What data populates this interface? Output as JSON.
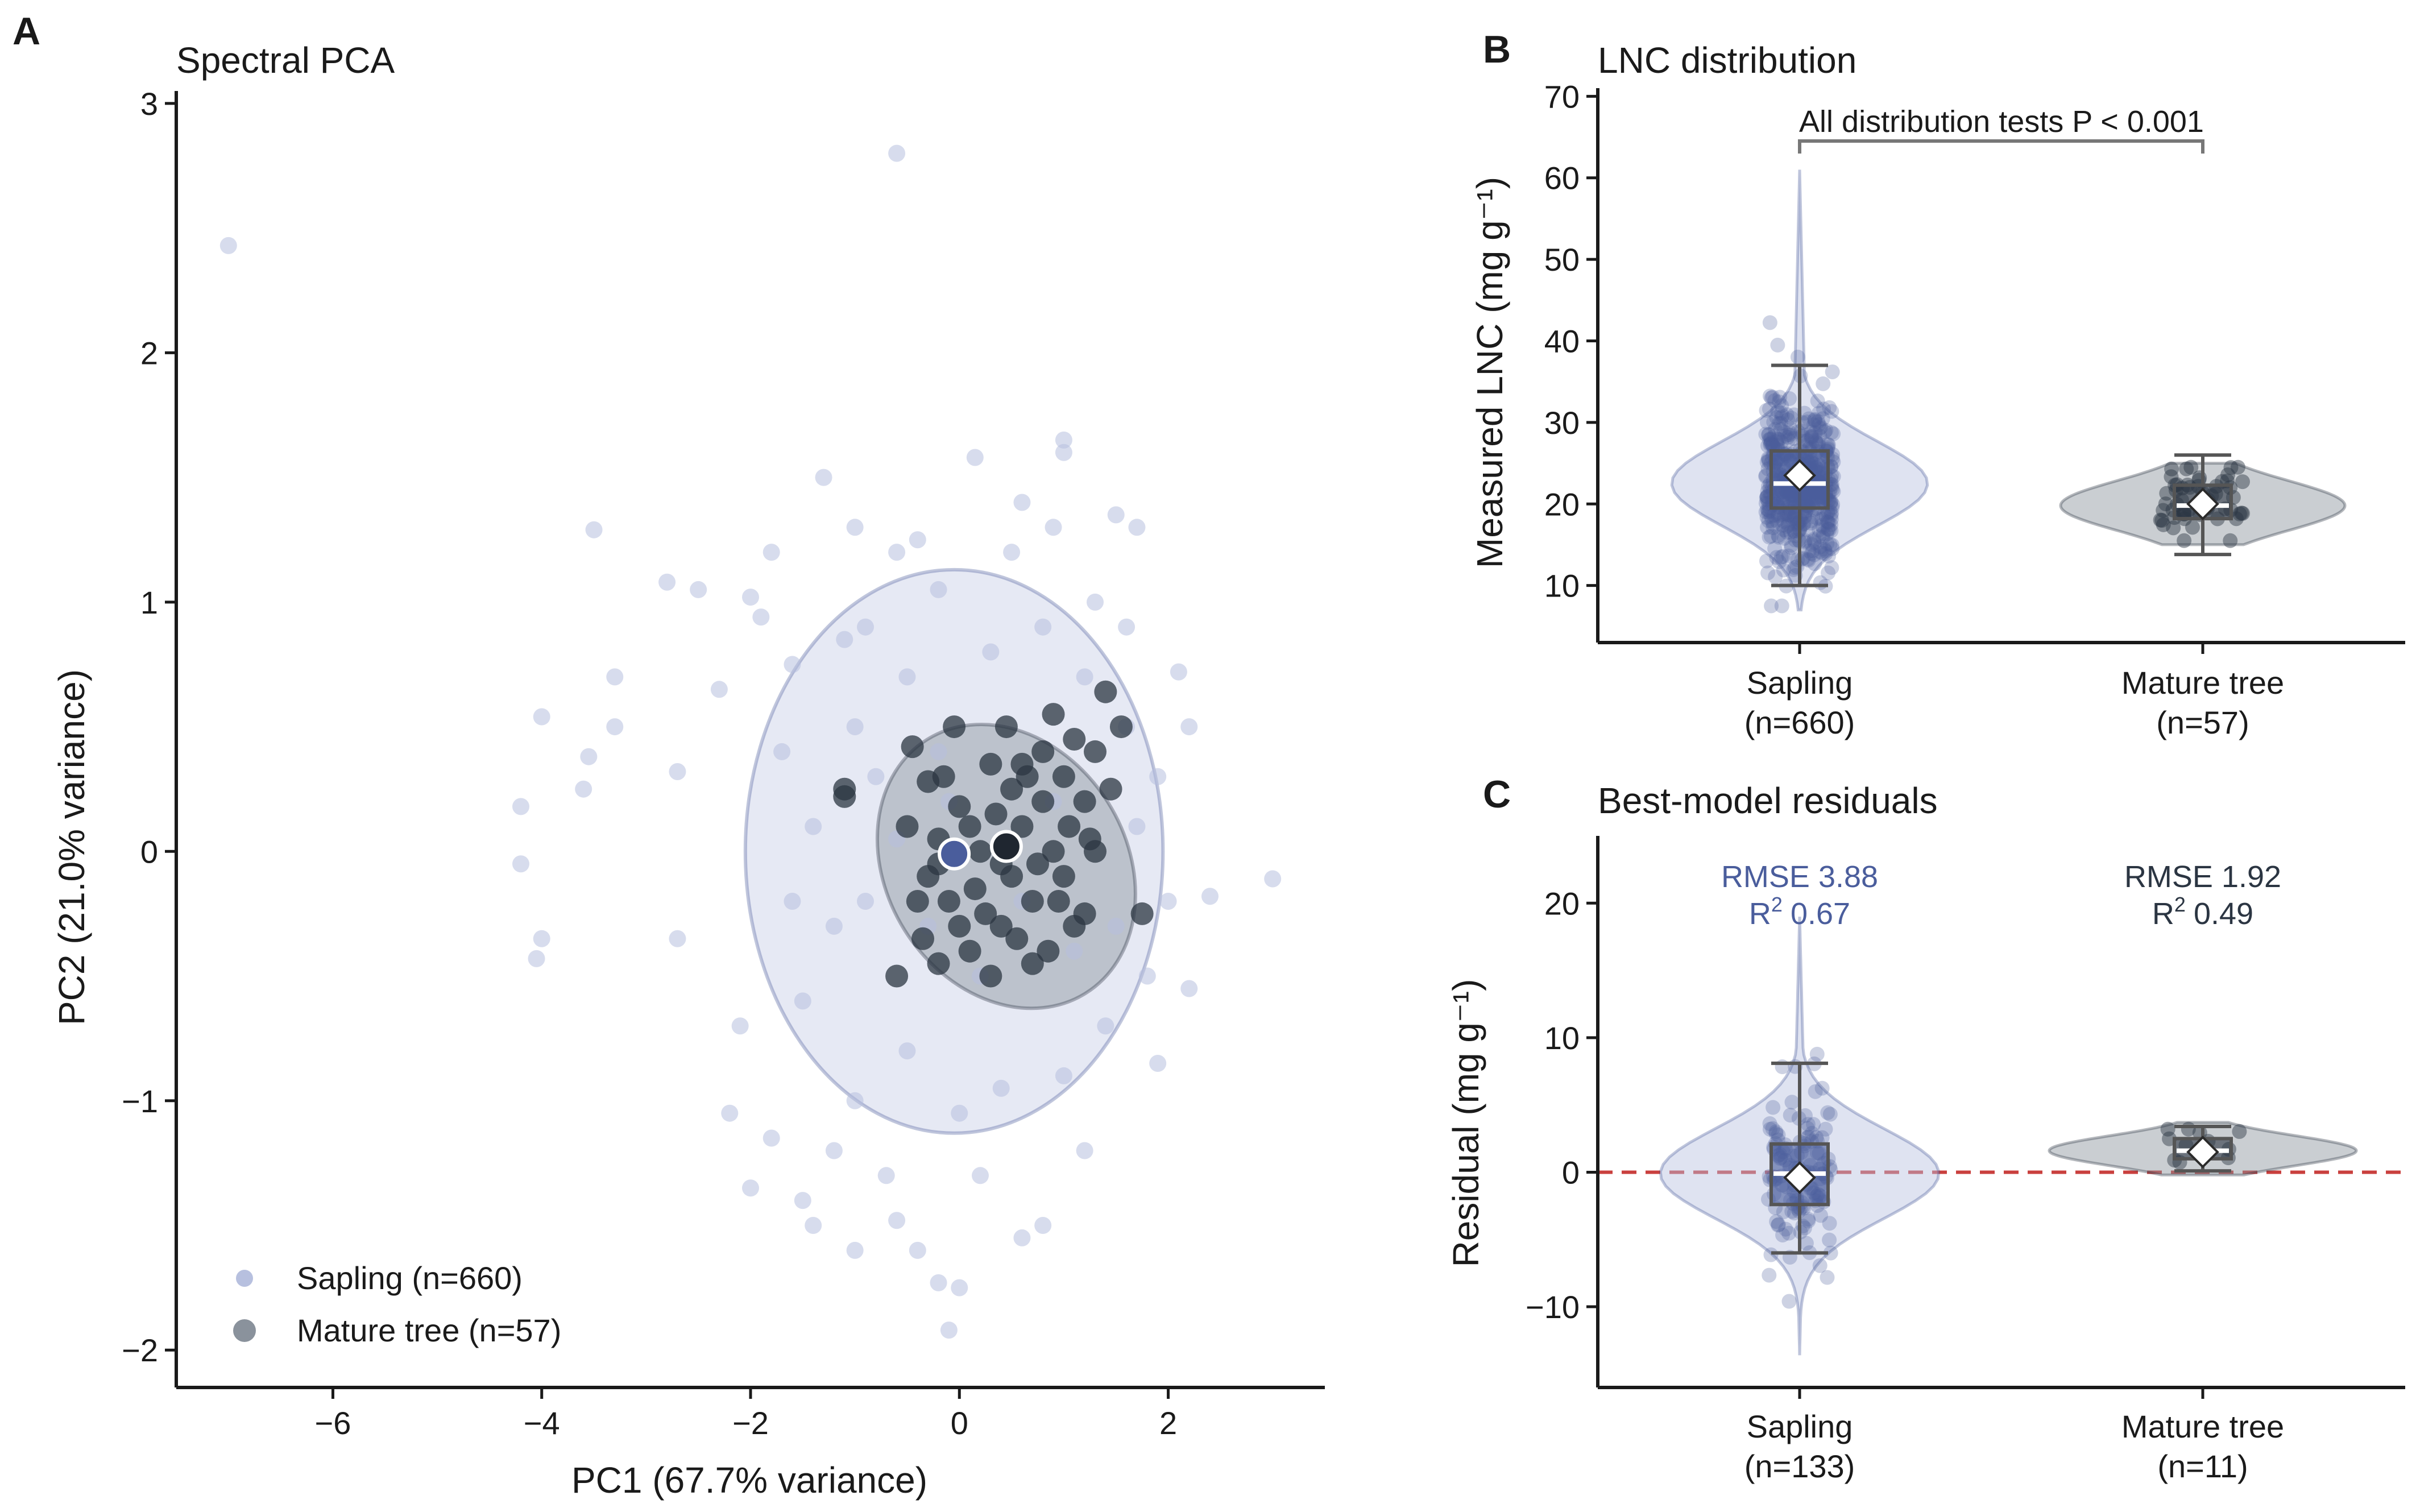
{
  "colors": {
    "sapling": "#4a5d9c",
    "sapling_light": "#b7c0df",
    "mature": "#2b3542",
    "mature_light": "#8a929c",
    "zero_line": "#c9403e",
    "axis": "#1a1a1a"
  },
  "chart_data": [
    {
      "panel": "A",
      "type": "scatter",
      "title": "Spectral PCA",
      "xlabel": "PC1 (67.7% variance)",
      "ylabel": "PC2 (21.0% variance)",
      "xlim": [
        -7.5,
        3.5
      ],
      "ylim": [
        -2.15,
        3.05
      ],
      "xticks": [
        -6,
        -4,
        -2,
        0,
        2
      ],
      "yticks": [
        -2,
        -1,
        0,
        1,
        2,
        3
      ],
      "legend_position": "bottom-left",
      "series": [
        {
          "name": "Sapling (n=660)",
          "centroid": [
            -0.05,
            -0.01
          ],
          "ellipse": {
            "center": [
              -0.05,
              0.0
            ],
            "rx": 2.0,
            "ry": 1.13,
            "angle_deg": 0
          },
          "points": [
            [
              -7.0,
              2.43
            ],
            [
              -0.6,
              2.8
            ],
            [
              -4.2,
              0.18
            ],
            [
              -4.0,
              0.54
            ],
            [
              -4.2,
              -0.05
            ],
            [
              -4.0,
              -0.35
            ],
            [
              -4.05,
              -0.43
            ],
            [
              -3.3,
              0.7
            ],
            [
              -3.5,
              1.29
            ],
            [
              -3.55,
              0.38
            ],
            [
              -3.6,
              0.25
            ],
            [
              -3.3,
              0.5
            ],
            [
              -2.8,
              1.08
            ],
            [
              -2.5,
              1.05
            ],
            [
              -2.7,
              0.32
            ],
            [
              -2.7,
              -0.35
            ],
            [
              -2.3,
              0.65
            ],
            [
              -2.0,
              1.02
            ],
            [
              -1.9,
              0.94
            ],
            [
              -1.8,
              1.2
            ],
            [
              -1.6,
              0.75
            ],
            [
              -1.3,
              1.5
            ],
            [
              -1.1,
              0.85
            ],
            [
              -1.0,
              1.3
            ],
            [
              -0.6,
              1.2
            ],
            [
              -0.2,
              1.05
            ],
            [
              0.15,
              1.58
            ],
            [
              0.6,
              1.4
            ],
            [
              0.9,
              1.3
            ],
            [
              1.0,
              1.6
            ],
            [
              1.0,
              1.65
            ],
            [
              1.5,
              1.35
            ],
            [
              1.7,
              1.3
            ],
            [
              2.1,
              0.72
            ],
            [
              2.2,
              0.5
            ],
            [
              2.4,
              -0.18
            ],
            [
              3.0,
              -0.11
            ],
            [
              2.2,
              -0.55
            ],
            [
              1.9,
              -0.85
            ],
            [
              -2.0,
              -1.35
            ],
            [
              -1.8,
              -1.15
            ],
            [
              -1.5,
              -1.4
            ],
            [
              -1.4,
              -1.5
            ],
            [
              -1.0,
              -1.6
            ],
            [
              -0.6,
              -1.48
            ],
            [
              -0.4,
              -1.6
            ],
            [
              -0.2,
              -1.73
            ],
            [
              0.0,
              -1.75
            ],
            [
              -0.1,
              -1.92
            ],
            [
              0.6,
              -1.55
            ],
            [
              0.8,
              -1.5
            ],
            [
              -1.0,
              -1.0
            ],
            [
              -0.5,
              -0.8
            ],
            [
              0.0,
              -1.05
            ],
            [
              0.4,
              -0.95
            ],
            [
              1.0,
              -0.9
            ],
            [
              1.4,
              -0.7
            ],
            [
              1.8,
              -0.5
            ],
            [
              -1.5,
              -0.6
            ],
            [
              -1.2,
              -0.3
            ],
            [
              -1.4,
              0.1
            ],
            [
              -1.0,
              0.5
            ],
            [
              -0.8,
              0.3
            ],
            [
              -0.5,
              0.7
            ],
            [
              -0.2,
              0.4
            ],
            [
              0.3,
              0.8
            ],
            [
              0.8,
              0.9
            ],
            [
              1.2,
              0.7
            ],
            [
              1.6,
              0.5
            ],
            [
              1.7,
              0.1
            ],
            [
              1.5,
              -0.3
            ],
            [
              -0.9,
              -0.2
            ],
            [
              -0.6,
              0.05
            ],
            [
              -0.3,
              -0.3
            ],
            [
              0.2,
              -0.5
            ],
            [
              0.6,
              -0.2
            ],
            [
              1.1,
              -0.4
            ],
            [
              -1.7,
              0.4
            ],
            [
              -1.6,
              -0.2
            ],
            [
              -2.1,
              -0.7
            ],
            [
              -2.2,
              -1.05
            ],
            [
              1.9,
              0.3
            ],
            [
              2.0,
              -0.2
            ],
            [
              -0.4,
              1.25
            ],
            [
              0.5,
              1.2
            ],
            [
              1.3,
              1.0
            ],
            [
              -1.2,
              -1.2
            ],
            [
              0.2,
              -1.3
            ],
            [
              1.2,
              -1.2
            ],
            [
              -0.7,
              -1.3
            ],
            [
              0.9,
              0.2
            ],
            [
              -0.1,
              0.2
            ],
            [
              -0.9,
              0.9
            ],
            [
              1.6,
              0.9
            ]
          ]
        },
        {
          "name": "Mature tree (n=57)",
          "centroid": [
            0.45,
            0.02
          ],
          "ellipse": {
            "center": [
              0.45,
              -0.06
            ],
            "rx": 1.15,
            "ry": 0.6,
            "angle_deg": -32
          },
          "points": [
            [
              1.4,
              0.64
            ],
            [
              1.1,
              0.45
            ],
            [
              1.55,
              0.5
            ],
            [
              -0.45,
              0.42
            ],
            [
              -1.1,
              0.25
            ],
            [
              -0.6,
              -0.5
            ],
            [
              -0.3,
              0.28
            ],
            [
              0.0,
              0.18
            ],
            [
              0.3,
              0.35
            ],
            [
              0.5,
              0.25
            ],
            [
              0.8,
              0.4
            ],
            [
              1.0,
              0.3
            ],
            [
              1.2,
              0.2
            ],
            [
              1.3,
              0.0
            ],
            [
              1.0,
              -0.1
            ],
            [
              0.7,
              -0.2
            ],
            [
              0.4,
              -0.3
            ],
            [
              0.1,
              -0.4
            ],
            [
              -0.2,
              -0.45
            ],
            [
              -0.4,
              -0.2
            ],
            [
              -0.2,
              0.05
            ],
            [
              0.2,
              0.0
            ],
            [
              0.6,
              0.1
            ],
            [
              0.9,
              0.0
            ],
            [
              1.2,
              -0.25
            ],
            [
              1.75,
              -0.25
            ],
            [
              0.7,
              -0.45
            ],
            [
              0.3,
              -0.5
            ],
            [
              -0.1,
              -0.2
            ],
            [
              0.5,
              -0.1
            ],
            [
              0.8,
              0.2
            ],
            [
              1.1,
              -0.3
            ],
            [
              -0.3,
              -0.1
            ],
            [
              0.0,
              -0.3
            ],
            [
              0.35,
              0.15
            ],
            [
              0.65,
              0.3
            ],
            [
              1.45,
              0.25
            ],
            [
              0.9,
              0.55
            ],
            [
              -0.5,
              0.1
            ],
            [
              -0.15,
              0.3
            ],
            [
              0.15,
              -0.15
            ],
            [
              0.55,
              -0.35
            ],
            [
              0.95,
              -0.2
            ],
            [
              1.3,
              0.4
            ],
            [
              -0.05,
              0.5
            ],
            [
              0.45,
              0.5
            ],
            [
              0.75,
              -0.05
            ],
            [
              1.05,
              0.1
            ],
            [
              -0.35,
              -0.35
            ],
            [
              0.25,
              -0.25
            ],
            [
              0.6,
              0.35
            ],
            [
              0.85,
              -0.4
            ],
            [
              1.25,
              0.05
            ],
            [
              -0.2,
              -0.05
            ],
            [
              0.1,
              0.1
            ],
            [
              0.4,
              -0.05
            ],
            [
              -1.1,
              0.22
            ]
          ]
        }
      ]
    },
    {
      "panel": "B",
      "type": "violin",
      "title": "LNC distribution",
      "ylabel": "Measured LNC (mg g⁻¹)",
      "ylim": [
        3,
        71
      ],
      "yticks": [
        10,
        20,
        30,
        40,
        50,
        60,
        70
      ],
      "annotation": "All distribution tests P < 0.001",
      "groups": [
        {
          "label": "Sapling",
          "n_label": "(n=660)",
          "min": 10,
          "q1": 19.5,
          "median": 22.5,
          "q3": 26.5,
          "max": 37,
          "mean": 23.5,
          "violin_range": [
            7,
            61
          ]
        },
        {
          "label": "Mature tree",
          "n_label": "(n=57)",
          "min": 13.8,
          "q1": 18.2,
          "median": 19.8,
          "q3": 22.3,
          "max": 26,
          "mean": 20,
          "violin_range": [
            15,
            25
          ]
        }
      ]
    },
    {
      "panel": "C",
      "type": "violin",
      "title": "Best-model residuals",
      "ylabel": "Residual (mg g⁻¹)",
      "ylim": [
        -16,
        25
      ],
      "yticks": [
        -10,
        0,
        10,
        20
      ],
      "reference_line": 0,
      "groups": [
        {
          "label": "Sapling",
          "n_label": "(n=133)",
          "rmse_text": "RMSE 3.88",
          "r2_value": "0.67",
          "min": -6,
          "q1": -2.4,
          "median": -0.1,
          "q3": 2.1,
          "max": 8.1,
          "mean": -0.4,
          "violin_range": [
            -13.5,
            19
          ]
        },
        {
          "label": "Mature tree",
          "n_label": "(n=11)",
          "rmse_text": "RMSE 1.92",
          "r2_value": "0.49",
          "min": 0.1,
          "q1": 1.0,
          "median": 1.6,
          "q3": 2.5,
          "max": 3.4,
          "mean": 1.5,
          "violin_range": [
            -0.2,
            3.7
          ]
        }
      ]
    }
  ],
  "panels": {
    "a": {
      "letter": "A"
    },
    "b": {
      "letter": "B",
      "g1_label": "Sapling",
      "g1_n": "(n=660)",
      "g2_label": "Mature tree",
      "g2_n": "(n=57)"
    },
    "c": {
      "letter": "C",
      "g1_label": "Sapling",
      "g1_n": "(n=133)",
      "g2_label": "Mature tree",
      "g2_n": "(n=11)",
      "r2_symbol": "R",
      "r2_sup": "2"
    }
  }
}
